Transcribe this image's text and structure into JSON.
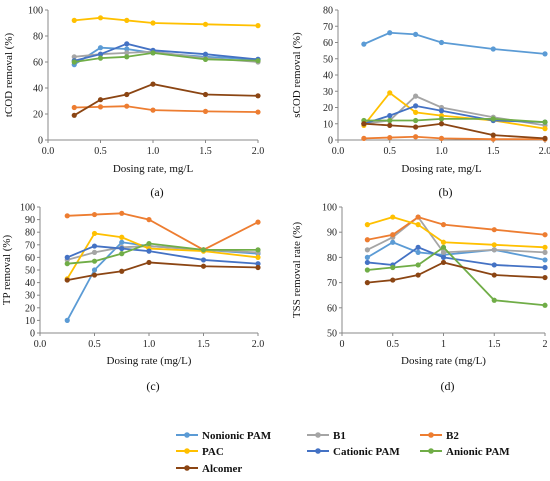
{
  "colors": {
    "Nonionic PAM": "#5B9BD5",
    "B1": "#A5A5A5",
    "B2": "#ED7D31",
    "PAC": "#FFC000",
    "Cationic PAM": "#4472C4",
    "Anionic PAM": "#70AD47",
    "Alcomer": "#8B4513"
  },
  "legend": {
    "entries": [
      "Nonionic PAM",
      "B1",
      "B2",
      "PAC",
      "Cationic PAM",
      "Anionic PAM",
      "Alcomer"
    ]
  },
  "chart_data": [
    {
      "id": "a",
      "type": "line",
      "panel_label": "(a)",
      "xlabel": "Dosing rate, mg/L",
      "ylabel": "tCOD removal (%)",
      "xlim": [
        0.0,
        2.0
      ],
      "ylim": [
        0,
        100
      ],
      "xticks": [
        "0.0",
        "0.5",
        "1.0",
        "1.5",
        "2.0"
      ],
      "yticks": [
        "0",
        "20",
        "40",
        "60",
        "80",
        "100"
      ],
      "x": [
        0.25,
        0.5,
        0.75,
        1.0,
        1.5,
        2.0
      ],
      "grid": false,
      "series": [
        {
          "name": "Nonionic PAM",
          "values": [
            58,
            71,
            70,
            67,
            64,
            62
          ]
        },
        {
          "name": "B1",
          "values": [
            64,
            66,
            67,
            68,
            63,
            60
          ]
        },
        {
          "name": "B2",
          "values": [
            25,
            25.5,
            26,
            23,
            22,
            21.5
          ]
        },
        {
          "name": "PAC",
          "values": [
            92,
            94,
            92,
            90,
            89,
            88
          ]
        },
        {
          "name": "Cationic PAM",
          "values": [
            61,
            66,
            74,
            69,
            66,
            62
          ]
        },
        {
          "name": "Anionic PAM",
          "values": [
            60,
            63,
            64,
            67,
            62,
            61
          ]
        },
        {
          "name": "Alcomer",
          "values": [
            19,
            31,
            35,
            43,
            35,
            34
          ]
        }
      ]
    },
    {
      "id": "b",
      "type": "line",
      "panel_label": "(b)",
      "xlabel": "Dosing rate, mg/L",
      "ylabel": "sCOD removal (%)",
      "xlim": [
        0.0,
        2.0
      ],
      "ylim": [
        0,
        80
      ],
      "xticks": [
        "0.0",
        "0.5",
        "1.0",
        "1.5",
        "2.0"
      ],
      "yticks": [
        "0",
        "10",
        "20",
        "30",
        "40",
        "50",
        "60",
        "70",
        "80"
      ],
      "x": [
        0.25,
        0.5,
        0.75,
        1.0,
        1.5,
        2.0
      ],
      "grid": false,
      "series": [
        {
          "name": "Nonionic PAM",
          "values": [
            59,
            66,
            65,
            60,
            56,
            53
          ]
        },
        {
          "name": "B1",
          "values": [
            10,
            12,
            27,
            20,
            14,
            9
          ]
        },
        {
          "name": "B2",
          "values": [
            1,
            1.5,
            2,
            1,
            0.5,
            0.5
          ]
        },
        {
          "name": "PAC",
          "values": [
            9,
            29,
            17,
            15,
            12,
            7
          ]
        },
        {
          "name": "Cationic PAM",
          "values": [
            10,
            15,
            21,
            18,
            12,
            11
          ]
        },
        {
          "name": "Anionic PAM",
          "values": [
            12,
            12,
            12,
            13,
            13,
            11
          ]
        },
        {
          "name": "Alcomer",
          "values": [
            10,
            9,
            8,
            10,
            3,
            1
          ]
        }
      ]
    },
    {
      "id": "c",
      "type": "line",
      "panel_label": "(c)",
      "xlabel": "Dosing rate (mg/L)",
      "ylabel": "TP removal (%)",
      "xlim": [
        0.0,
        2.0
      ],
      "ylim": [
        0,
        100
      ],
      "xticks": [
        "0.0",
        "0.5",
        "1.0",
        "1.5",
        "2.0"
      ],
      "yticks": [
        "0",
        "10",
        "20",
        "30",
        "40",
        "50",
        "60",
        "70",
        "80",
        "90",
        "100"
      ],
      "x": [
        0.25,
        0.5,
        0.75,
        1.0,
        1.5,
        2.0
      ],
      "grid": false,
      "series": [
        {
          "name": "Nonionic PAM",
          "values": [
            10,
            50,
            72,
            69,
            66,
            63
          ]
        },
        {
          "name": "B1",
          "values": [
            58,
            64,
            68,
            69,
            66,
            64
          ]
        },
        {
          "name": "B2",
          "values": [
            93,
            94,
            95,
            90,
            66,
            88
          ]
        },
        {
          "name": "PAC",
          "values": [
            43,
            79,
            76,
            67,
            65,
            60
          ]
        },
        {
          "name": "Cationic PAM",
          "values": [
            60,
            69,
            67,
            65,
            58,
            55
          ]
        },
        {
          "name": "Anionic PAM",
          "values": [
            55,
            57,
            63,
            71,
            66,
            66
          ]
        },
        {
          "name": "Alcomer",
          "values": [
            42,
            46,
            49,
            56,
            53,
            52
          ]
        }
      ]
    },
    {
      "id": "d",
      "type": "line",
      "panel_label": "(d)",
      "xlabel": "Dosing rate (mg/L)",
      "ylabel": "TSS removal rate (%)",
      "xlim": [
        0,
        2
      ],
      "ylim": [
        50,
        100
      ],
      "xticks": [
        "0",
        "0.5",
        "1",
        "1.5",
        "2"
      ],
      "yticks": [
        "50",
        "60",
        "70",
        "80",
        "90",
        "100"
      ],
      "x": [
        0.25,
        0.5,
        0.75,
        1.0,
        1.5,
        2.0
      ],
      "grid": false,
      "series": [
        {
          "name": "Nonionic PAM",
          "values": [
            80,
            86,
            82,
            81,
            83,
            79
          ]
        },
        {
          "name": "B1",
          "values": [
            83,
            88,
            96,
            82,
            83,
            82
          ]
        },
        {
          "name": "B2",
          "values": [
            87,
            89,
            96,
            93,
            91,
            89
          ]
        },
        {
          "name": "PAC",
          "values": [
            93,
            96,
            93,
            86,
            85,
            84
          ]
        },
        {
          "name": "Cationic PAM",
          "values": [
            78,
            77,
            84,
            80,
            77,
            76
          ]
        },
        {
          "name": "Anionic PAM",
          "values": [
            75,
            76,
            77,
            84,
            63,
            61
          ]
        },
        {
          "name": "Alcomer",
          "values": [
            70,
            71,
            73,
            78,
            73,
            72
          ]
        }
      ]
    }
  ]
}
